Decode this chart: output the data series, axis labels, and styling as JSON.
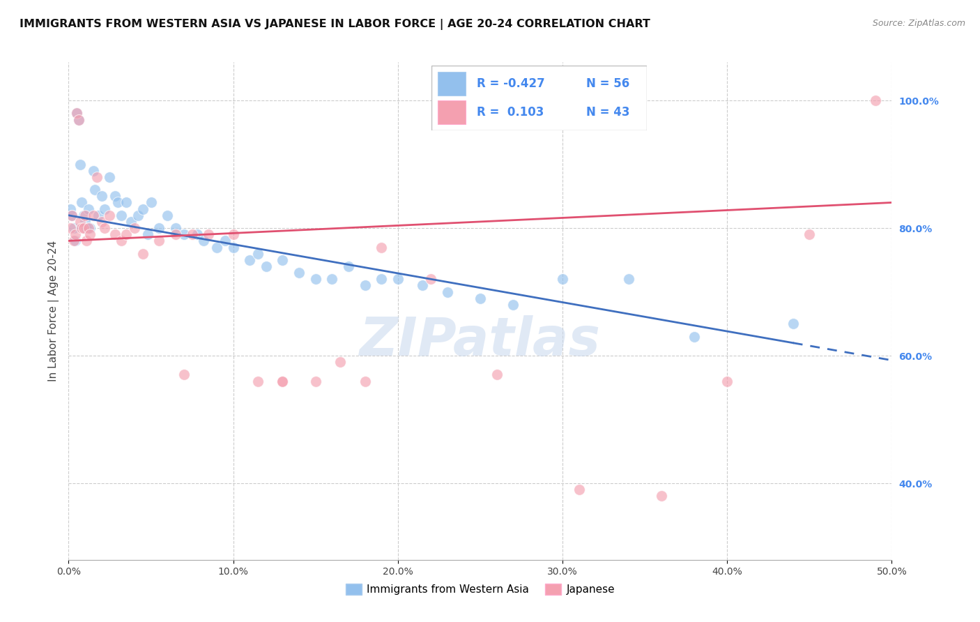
{
  "title": "IMMIGRANTS FROM WESTERN ASIA VS JAPANESE IN LABOR FORCE | AGE 20-24 CORRELATION CHART",
  "source": "Source: ZipAtlas.com",
  "ylabel": "In Labor Force | Age 20-24",
  "xlim": [
    0.0,
    0.5
  ],
  "ylim": [
    0.28,
    1.06
  ],
  "xticklabels": [
    "0.0%",
    "10.0%",
    "20.0%",
    "30.0%",
    "40.0%",
    "50.0%"
  ],
  "yticks_right": [
    0.4,
    0.6,
    0.8,
    1.0
  ],
  "yticklabels_right": [
    "40.0%",
    "60.0%",
    "80.0%",
    "100.0%"
  ],
  "R_blue": -0.427,
  "N_blue": 56,
  "R_pink": 0.103,
  "N_pink": 43,
  "blue_color": "#93C0ED",
  "pink_color": "#F4A0B0",
  "trend_blue": "#3F6FBF",
  "trend_pink": "#E05070",
  "watermark": "ZIPatlas",
  "blue_scatter_x": [
    0.001,
    0.002,
    0.003,
    0.004,
    0.005,
    0.006,
    0.007,
    0.008,
    0.009,
    0.01,
    0.011,
    0.012,
    0.013,
    0.015,
    0.016,
    0.018,
    0.02,
    0.022,
    0.025,
    0.028,
    0.03,
    0.032,
    0.035,
    0.038,
    0.042,
    0.045,
    0.048,
    0.05,
    0.055,
    0.06,
    0.065,
    0.07,
    0.078,
    0.082,
    0.09,
    0.095,
    0.1,
    0.11,
    0.115,
    0.12,
    0.13,
    0.14,
    0.15,
    0.16,
    0.17,
    0.18,
    0.19,
    0.2,
    0.215,
    0.23,
    0.25,
    0.27,
    0.3,
    0.34,
    0.38,
    0.44
  ],
  "blue_scatter_y": [
    0.83,
    0.82,
    0.8,
    0.78,
    0.98,
    0.97,
    0.9,
    0.84,
    0.82,
    0.81,
    0.8,
    0.83,
    0.8,
    0.89,
    0.86,
    0.82,
    0.85,
    0.83,
    0.88,
    0.85,
    0.84,
    0.82,
    0.84,
    0.81,
    0.82,
    0.83,
    0.79,
    0.84,
    0.8,
    0.82,
    0.8,
    0.79,
    0.79,
    0.78,
    0.77,
    0.78,
    0.77,
    0.75,
    0.76,
    0.74,
    0.75,
    0.73,
    0.72,
    0.72,
    0.74,
    0.71,
    0.72,
    0.72,
    0.71,
    0.7,
    0.69,
    0.68,
    0.72,
    0.72,
    0.63,
    0.65
  ],
  "pink_scatter_x": [
    0.001,
    0.002,
    0.003,
    0.004,
    0.005,
    0.006,
    0.007,
    0.008,
    0.009,
    0.01,
    0.011,
    0.012,
    0.013,
    0.015,
    0.017,
    0.02,
    0.022,
    0.025,
    0.028,
    0.032,
    0.035,
    0.04,
    0.045,
    0.055,
    0.065,
    0.075,
    0.085,
    0.1,
    0.115,
    0.13,
    0.15,
    0.165,
    0.19,
    0.22,
    0.26,
    0.31,
    0.36,
    0.4,
    0.45,
    0.49,
    0.18,
    0.13,
    0.07
  ],
  "pink_scatter_y": [
    0.8,
    0.82,
    0.78,
    0.79,
    0.98,
    0.97,
    0.81,
    0.8,
    0.8,
    0.82,
    0.78,
    0.8,
    0.79,
    0.82,
    0.88,
    0.81,
    0.8,
    0.82,
    0.79,
    0.78,
    0.79,
    0.8,
    0.76,
    0.78,
    0.79,
    0.79,
    0.79,
    0.79,
    0.56,
    0.56,
    0.56,
    0.59,
    0.77,
    0.72,
    0.57,
    0.39,
    0.38,
    0.56,
    0.79,
    1.0,
    0.56,
    0.56,
    0.57
  ],
  "blue_trend_x0": 0.0,
  "blue_trend_x_solid_end": 0.44,
  "blue_trend_x_dash_end": 0.5,
  "pink_trend_x0": 0.0,
  "pink_trend_x_end": 0.5
}
